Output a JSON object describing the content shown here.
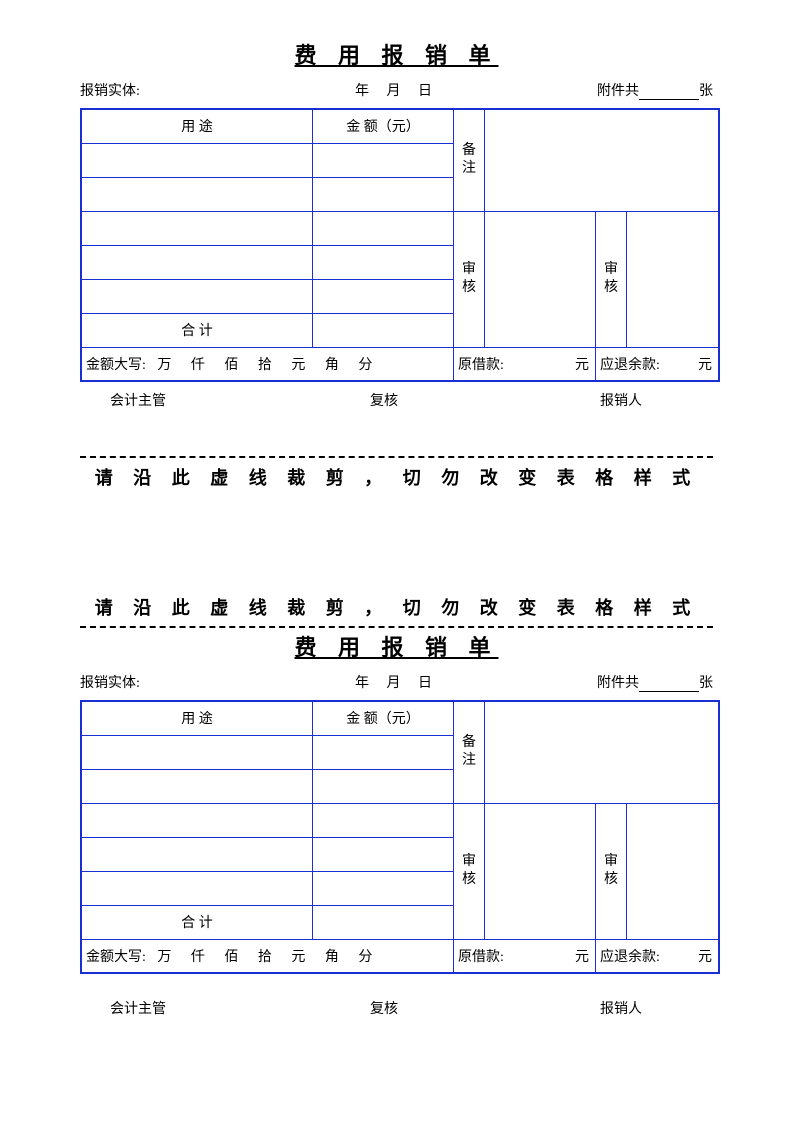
{
  "colors": {
    "border": "#1a2fd3",
    "text": "#000000",
    "background": "#ffffff"
  },
  "form": {
    "title": "费 用 报 销 单",
    "header": {
      "entity_label": "报销实体:",
      "year": "年",
      "month": "月",
      "day": "日",
      "attach_prefix": "附件共",
      "attach_suffix": "张"
    },
    "table": {
      "col_use": "用           途",
      "col_amount": "金  额（元）",
      "col_note": "备注",
      "col_review1": "审核",
      "col_review2": "审核",
      "total_label": "合        计"
    },
    "amount_row": {
      "prefix": "金额大写:",
      "u_wan": "万",
      "u_qian": "仟",
      "u_bai": "佰",
      "u_shi": "拾",
      "u_yuan": "元",
      "u_jiao": "角",
      "u_fen": "分",
      "loan_label": "原借款:",
      "loan_unit": "元",
      "refund_label": "应退余款:",
      "refund_unit": "元"
    },
    "footer": {
      "a": "会计主管",
      "b": "复核",
      "c": "报销人"
    }
  },
  "cut_note": "请 沿 此 虚 线 裁 剪 ， 切 勿 改 变 表 格 样 式"
}
